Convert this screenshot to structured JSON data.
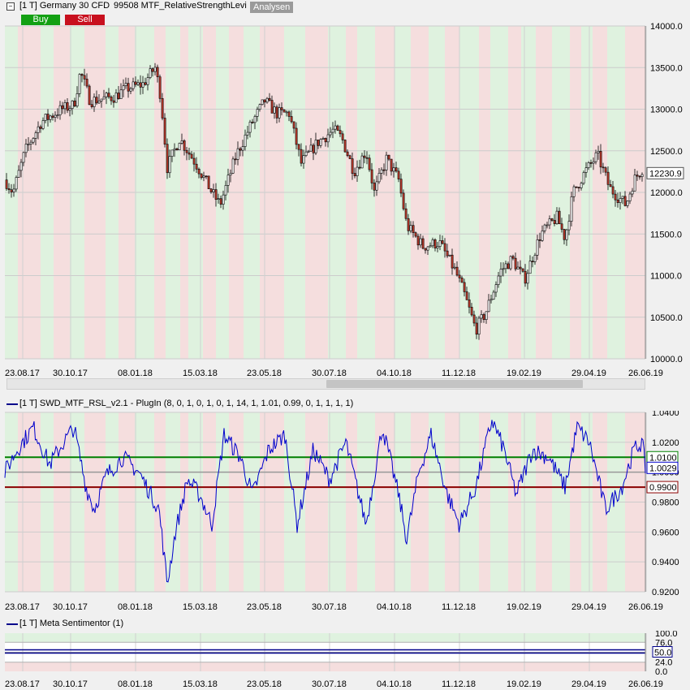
{
  "main": {
    "title": "[1 T] Germany 30 CFD",
    "indicator": "99508 MTF_RelativeStrengthLevi",
    "analysen_label": "Analysen",
    "buy_label": "Buy",
    "sell_label": "Sell",
    "price_tag": "12230.9",
    "y_ticks": [
      "14000.0",
      "13500.0",
      "13000.0",
      "12500.0",
      "12000.0",
      "11500.0",
      "11000.0",
      "10500.0",
      "10000.0"
    ]
  },
  "rsl": {
    "title": "[1 T] SWD_MTF_RSL_v2.1 - PlugIn  (8, 0, 1, 0, 1, 0, 1, 14, 1, 1.01, 0.99, 0, 1, 1, 1, 1)",
    "y_ticks": [
      "1.0400",
      "1.0200",
      "1.0000",
      "0.9800",
      "0.9600",
      "0.9400",
      "0.9200"
    ],
    "tag_upper": "1.0100",
    "tag_current": "1.0029",
    "tag_lower": "0.9900"
  },
  "sentiment": {
    "title": "[1 T] Meta Sentimentor  (1)",
    "y_ticks": [
      "100.0",
      "76.0",
      "50.0",
      "24.0",
      "0.0"
    ],
    "tag_value": "50.0"
  },
  "dates": [
    "23.08.17",
    "30.10.17",
    "08.01.18",
    "15.03.18",
    "23.05.18",
    "30.07.18",
    "04.10.18",
    "11.12.18",
    "19.02.19",
    "29.04.19",
    "26.06.19"
  ],
  "colors": {
    "up_bg": "#dff2df",
    "down_bg": "#f5dede",
    "bull_candle": "#ffffff",
    "bear_candle": "#c0392b",
    "rsl_line": "#0000cc",
    "upper_line": "#008000",
    "lower_line": "#8b0000"
  },
  "chart_data": [
    {
      "type": "candlestick",
      "title": "[1 T] Germany 30 CFD",
      "ylim": [
        10000,
        14000
      ],
      "x_tick_labels": [
        "23.08.17",
        "30.10.17",
        "08.01.18",
        "15.03.18",
        "23.05.18",
        "30.07.18",
        "04.10.18",
        "11.12.18",
        "19.02.19",
        "29.04.19",
        "26.06.19"
      ],
      "close_series": {
        "x": [
          "23.08.17",
          "30.10.17",
          "08.01.18",
          "15.03.18",
          "23.05.18",
          "30.07.18",
          "04.10.18",
          "11.12.18",
          "19.02.19",
          "29.04.19",
          "26.06.19"
        ],
        "values": [
          12250,
          13050,
          13250,
          12200,
          12850,
          12600,
          12350,
          10800,
          11200,
          12300,
          12230.9
        ]
      },
      "last_value": 12230.9
    },
    {
      "type": "line",
      "title": "[1 T] SWD_MTF_RSL_v2.1 - PlugIn",
      "ylim": [
        0.92,
        1.04
      ],
      "reference_lines": [
        1.01,
        0.99
      ],
      "last_value": 1.0029
    },
    {
      "type": "line",
      "title": "[1 T] Meta Sentimentor",
      "ylim": [
        0,
        100
      ],
      "levels": [
        76,
        50,
        24
      ],
      "last_value": 50.0
    }
  ]
}
